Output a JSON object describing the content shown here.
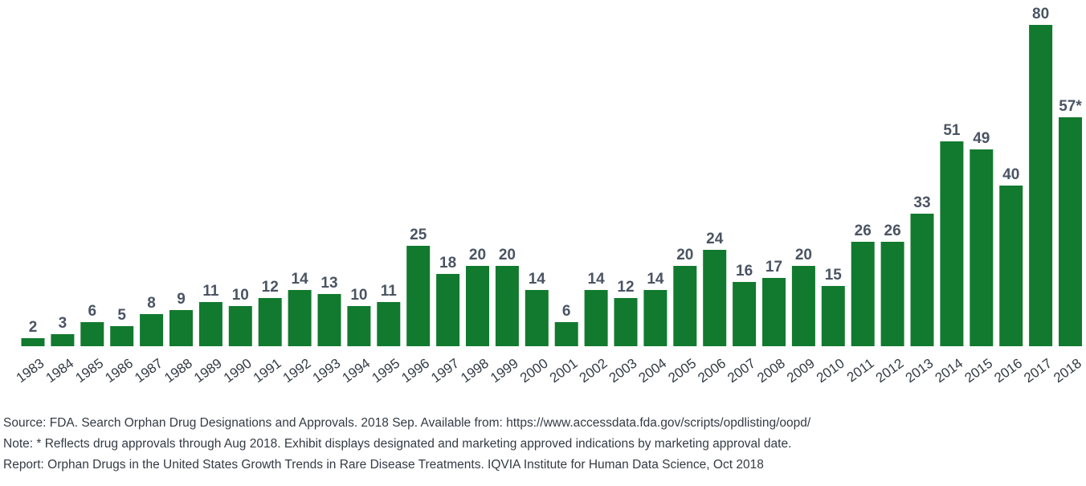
{
  "chart_data": {
    "type": "bar",
    "title": "",
    "xlabel": "",
    "ylabel": "",
    "ylim": [
      0,
      80
    ],
    "grid": false,
    "categories": [
      "1983",
      "1984",
      "1985",
      "1986",
      "1987",
      "1988",
      "1989",
      "1990",
      "1991",
      "1992",
      "1993",
      "1994",
      "1995",
      "1996",
      "1997",
      "1998",
      "1999",
      "2000",
      "2001",
      "2002",
      "2003",
      "2004",
      "2005",
      "2006",
      "2007",
      "2008",
      "2009",
      "2010",
      "2011",
      "2012",
      "2013",
      "2014",
      "2015",
      "2016",
      "2017",
      "2018"
    ],
    "values": [
      2,
      3,
      6,
      5,
      8,
      9,
      11,
      10,
      12,
      14,
      13,
      10,
      11,
      25,
      18,
      20,
      20,
      14,
      6,
      14,
      12,
      14,
      20,
      24,
      16,
      17,
      20,
      15,
      26,
      26,
      33,
      51,
      49,
      40,
      80,
      57
    ],
    "data_labels": [
      "2",
      "3",
      "6",
      "5",
      "8",
      "9",
      "11",
      "10",
      "12",
      "14",
      "13",
      "10",
      "11",
      "25",
      "18",
      "20",
      "20",
      "14",
      "6",
      "14",
      "12",
      "14",
      "20",
      "24",
      "16",
      "17",
      "20",
      "15",
      "26",
      "26",
      "33",
      "51",
      "49",
      "40",
      "80",
      "57*"
    ],
    "bar_color": "#117a2e"
  },
  "notes": {
    "source": "Source: FDA. Search Orphan Drug Designations and Approvals. 2018 Sep. Available from: https://www.accessdata.fda.gov/scripts/opdlisting/oopd/",
    "note": "Note: * Reflects drug approvals through Aug 2018. Exhibit displays designated and marketing approved indications by marketing approval date.",
    "report": "Report: Orphan Drugs in the United States Growth Trends in Rare Disease Treatments. IQVIA Institute for Human Data Science, Oct 2018"
  }
}
